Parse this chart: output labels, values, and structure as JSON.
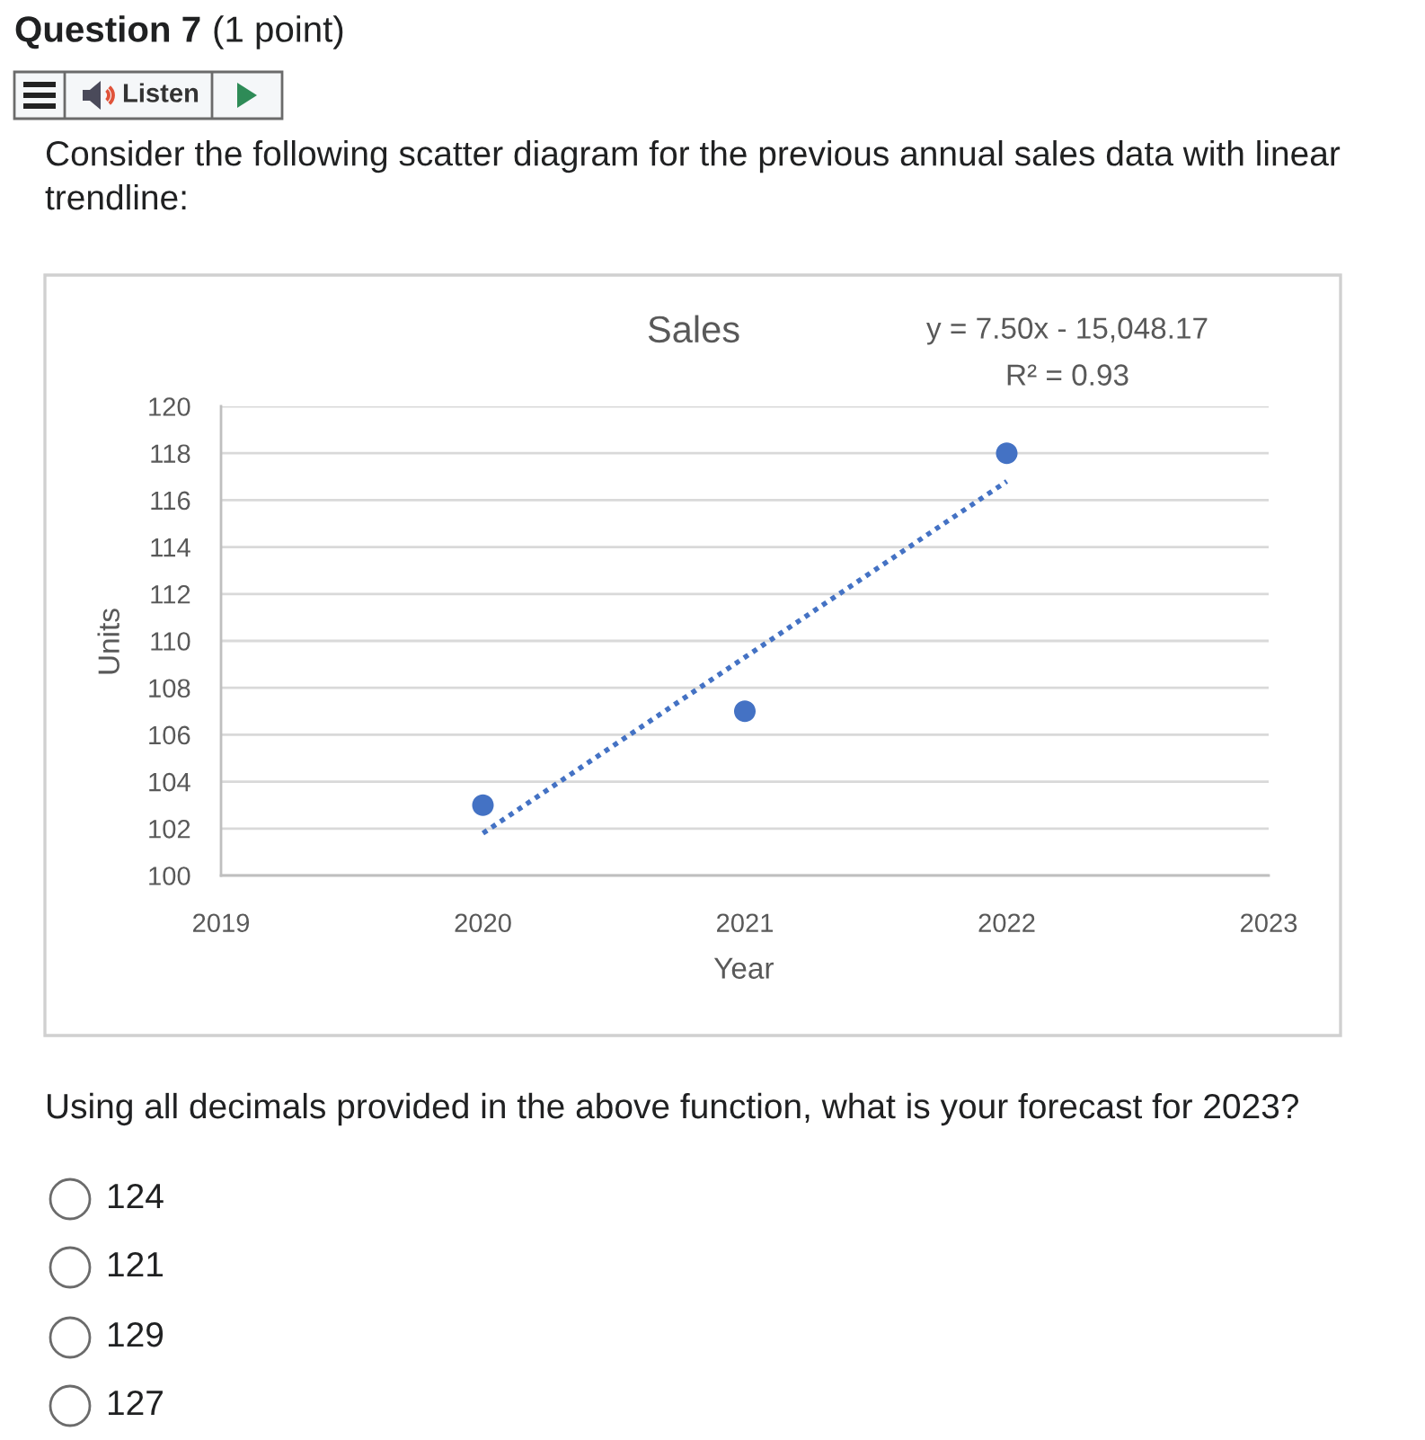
{
  "chart_data": {
    "type": "scatter",
    "title": "Sales",
    "xlabel": "Year",
    "ylabel": "Units",
    "annotations": [
      "Question 7",
      "(1 point)",
      "Listen",
      "Consider the following scatter diagram for the previous annual sales data with linear trendline:",
      "y = 7.50x - 15,048.17",
      "R² = 0.93",
      "Using all decimals provided in the above function, what is your forecast for 2023?",
      "124",
      "121",
      "129",
      "127"
    ],
    "series": [
      {
        "x": [
          2020,
          2021,
          2022
        ],
        "values": [
          103,
          107,
          118
        ],
        "color": "#4472c4",
        "marker": "circle"
      },
      {
        "type": "line",
        "x": [
          2020,
          2022
        ],
        "values": [
          101.8,
          116.8
        ],
        "color": "#4472c4",
        "line_style": "dotted",
        "marker": "none"
      }
    ],
    "xlim": [
      2019,
      2023
    ],
    "xticks": [
      2019,
      2020,
      2021,
      2022,
      2023
    ],
    "ylim": [
      100,
      120
    ],
    "yticks": [
      100,
      102,
      104,
      106,
      108,
      110,
      112,
      114,
      116,
      118,
      120
    ],
    "grid": "y"
  }
}
